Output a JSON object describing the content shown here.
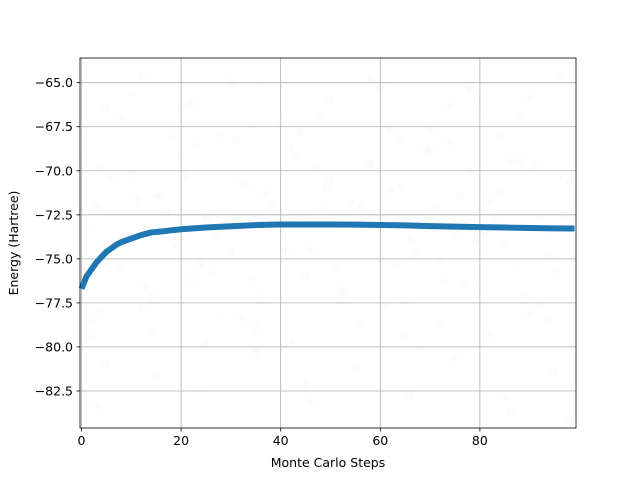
{
  "chart_data": {
    "type": "line",
    "title": "",
    "xlabel": "Monte Carlo Steps",
    "ylabel": "Energy (Hartree)",
    "xlim": [
      -0.3,
      99.3
    ],
    "ylim": [
      -84.6,
      -63.6
    ],
    "xticks": [
      {
        "value": 0,
        "label": "0"
      },
      {
        "value": 20,
        "label": "20"
      },
      {
        "value": 40,
        "label": "40"
      },
      {
        "value": 60,
        "label": "60"
      },
      {
        "value": 80,
        "label": "80"
      }
    ],
    "yticks": [
      {
        "value": -65.0,
        "label": "−65.0"
      },
      {
        "value": -67.5,
        "label": "−67.5"
      },
      {
        "value": -70.0,
        "label": "−70.0"
      },
      {
        "value": -72.5,
        "label": "−72.5"
      },
      {
        "value": -75.0,
        "label": "−75.0"
      },
      {
        "value": -77.5,
        "label": "−77.5"
      },
      {
        "value": -80.0,
        "label": "−80.0"
      },
      {
        "value": -82.5,
        "label": "−82.5"
      }
    ],
    "grid": true,
    "series": [
      {
        "kind": "line",
        "color": "#1f77b4",
        "x": [
          0,
          1,
          2,
          3,
          4,
          5,
          6,
          7,
          8,
          10,
          12,
          14,
          16,
          18,
          20,
          25,
          30,
          35,
          40,
          45,
          50,
          55,
          60,
          65,
          70,
          75,
          80,
          85,
          90,
          95,
          99
        ],
        "y": [
          -76.7,
          -76.0,
          -75.6,
          -75.2,
          -74.9,
          -74.6,
          -74.4,
          -74.2,
          -74.05,
          -73.85,
          -73.65,
          -73.5,
          -73.45,
          -73.38,
          -73.32,
          -73.22,
          -73.15,
          -73.08,
          -73.05,
          -73.05,
          -73.05,
          -73.06,
          -73.08,
          -73.1,
          -73.14,
          -73.17,
          -73.2,
          -73.22,
          -73.25,
          -73.27,
          -73.28
        ]
      },
      {
        "kind": "scatter",
        "color": "#bbbbbb",
        "x": [
          0,
          3,
          5,
          8,
          10,
          12,
          15,
          18,
          20,
          22,
          25,
          28,
          30,
          33,
          35,
          38,
          40,
          42,
          45,
          48,
          50,
          52,
          55,
          58,
          60,
          62,
          65,
          68,
          70,
          72,
          75,
          78,
          80,
          82,
          85,
          88,
          90,
          92,
          95,
          98,
          1,
          4,
          7,
          11,
          14,
          17,
          21,
          24,
          27,
          31,
          34,
          37,
          41,
          44,
          47,
          51,
          54,
          57,
          61,
          64,
          67,
          71,
          74,
          77,
          81,
          84,
          87,
          91,
          94,
          97,
          2,
          6,
          9,
          13,
          16,
          19,
          23,
          26,
          29,
          32,
          36,
          39,
          43,
          46,
          49,
          53,
          56,
          59,
          63,
          66,
          69,
          73,
          76,
          79,
          83,
          86,
          89,
          93,
          96,
          99,
          0,
          5,
          10,
          15,
          20,
          25,
          30,
          35,
          40,
          45,
          50,
          55,
          60,
          65,
          70,
          75,
          80,
          85,
          90,
          95,
          2,
          8,
          14,
          22,
          28,
          34,
          42,
          48,
          56,
          62,
          68,
          74,
          82,
          88,
          94,
          3,
          12,
          24,
          36,
          46,
          58,
          66,
          78,
          86,
          96,
          4,
          18,
          32,
          44,
          52,
          64,
          72,
          84,
          92,
          98
        ],
        "y": [
          -68.5,
          -72.0,
          -66.5,
          -75.5,
          -70.2,
          -77.8,
          -71.4,
          -73.9,
          -69.1,
          -76.2,
          -72.7,
          -67.9,
          -74.6,
          -70.8,
          -78.9,
          -71.9,
          -73.3,
          -68.7,
          -75.9,
          -72.2,
          -70.5,
          -76.8,
          -73.1,
          -69.6,
          -74.9,
          -71.1,
          -77.4,
          -72.9,
          -68.9,
          -75.1,
          -73.6,
          -70.1,
          -76.5,
          -71.7,
          -74.2,
          -69.4,
          -78.1,
          -72.5,
          -75.7,
          -70.6,
          -73.4,
          -69.8,
          -74.1,
          -71.6,
          -77.1,
          -72.4,
          -70.3,
          -75.3,
          -73.8,
          -68.2,
          -76.1,
          -71.3,
          -74.5,
          -72.8,
          -69.9,
          -75.6,
          -71.8,
          -73.2,
          -77.6,
          -70.9,
          -74.7,
          -72.1,
          -68.4,
          -76.4,
          -73.5,
          -71.2,
          -75.2,
          -69.7,
          -74.8,
          -72.6,
          -79.5,
          -70.4,
          -73.7,
          -76.6,
          -71.5,
          -74.3,
          -68.6,
          -75.8,
          -72.3,
          -70.7,
          -77.2,
          -73.0,
          -69.2,
          -74.4,
          -71.0,
          -76.9,
          -72.0,
          -70.0,
          -75.4,
          -73.9,
          -68.8,
          -76.3,
          -71.4,
          -74.0,
          -72.7,
          -69.5,
          -77.0,
          -73.4,
          -70.2,
          -75.0,
          -82.6,
          -80.9,
          -65.6,
          -81.7,
          -66.4,
          -79.8,
          -64.9,
          -80.3,
          -67.2,
          -82.1,
          -66.0,
          -81.2,
          -65.3,
          -79.4,
          -67.6,
          -80.7,
          -66.7,
          -82.9,
          -65.8,
          -81.4,
          -78.6,
          -67.1,
          -79.1,
          -66.2,
          -78.3,
          -67.4,
          -79.7,
          -66.9,
          -78.8,
          -67.7,
          -80.1,
          -66.3,
          -79.3,
          -67.0,
          -78.5,
          -83.4,
          -64.6,
          -82.4,
          -65.1,
          -83.1,
          -64.8,
          -82.7,
          -65.4,
          -83.7,
          -64.7,
          -77.9,
          -68.1,
          -78.4,
          -67.8,
          -77.3,
          -68.3,
          -78.7,
          -68.0,
          -77.7,
          -84.1
        ]
      }
    ]
  }
}
